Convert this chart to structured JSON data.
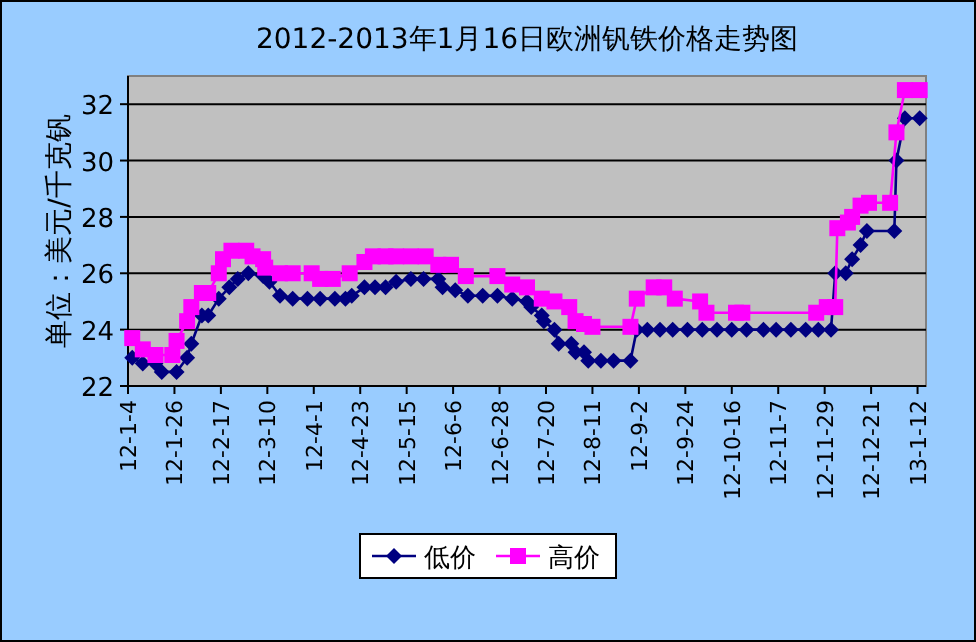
{
  "chart_data": {
    "type": "line",
    "title": "2012-2013年1月16日欧洲钒铁价格走势图",
    "ylabel": "单位：美元/千克钒",
    "xlim": [
      "2012-01-04",
      "2013-01-16"
    ],
    "xticks": [
      {
        "value": "2012-01-04",
        "label": "12-1-4"
      },
      {
        "value": "2012-01-26",
        "label": "12-1-26"
      },
      {
        "value": "2012-02-17",
        "label": "12-2-17"
      },
      {
        "value": "2012-03-10",
        "label": "12-3-10"
      },
      {
        "value": "2012-04-01",
        "label": "12-4-1"
      },
      {
        "value": "2012-04-23",
        "label": "12-4-23"
      },
      {
        "value": "2012-05-15",
        "label": "12-5-15"
      },
      {
        "value": "2012-06-06",
        "label": "12-6-6"
      },
      {
        "value": "2012-06-28",
        "label": "12-6-28"
      },
      {
        "value": "2012-07-20",
        "label": "12-7-20"
      },
      {
        "value": "2012-08-11",
        "label": "12-8-11"
      },
      {
        "value": "2012-09-02",
        "label": "12-9-2"
      },
      {
        "value": "2012-09-24",
        "label": "12-9-24"
      },
      {
        "value": "2012-10-16",
        "label": "12-10-16"
      },
      {
        "value": "2012-11-07",
        "label": "12-11-7"
      },
      {
        "value": "2012-11-29",
        "label": "12-11-29"
      },
      {
        "value": "2012-12-21",
        "label": "12-12-21"
      },
      {
        "value": "2013-01-12",
        "label": "13-1-12"
      }
    ],
    "ylim": [
      22,
      33
    ],
    "yticks": [
      22,
      24,
      26,
      28,
      30,
      32
    ],
    "grid": "y",
    "legend": "bottom",
    "series": [
      {
        "name": "低价",
        "color": "#000080",
        "marker": "diamond",
        "x": [
          "2012-01-06",
          "2012-01-11",
          "2012-01-17",
          "2012-01-20",
          "2012-01-27",
          "2012-02-01",
          "2012-02-03",
          "2012-02-08",
          "2012-02-11",
          "2012-02-16",
          "2012-02-21",
          "2012-02-25",
          "2012-03-01",
          "2012-03-08",
          "2012-03-11",
          "2012-03-16",
          "2012-03-22",
          "2012-03-29",
          "2012-04-04",
          "2012-04-11",
          "2012-04-16",
          "2012-04-19",
          "2012-04-25",
          "2012-04-30",
          "2012-05-05",
          "2012-05-10",
          "2012-05-17",
          "2012-05-23",
          "2012-05-30",
          "2012-06-01",
          "2012-06-07",
          "2012-06-13",
          "2012-06-20",
          "2012-06-27",
          "2012-07-04",
          "2012-07-11",
          "2012-07-13",
          "2012-07-18",
          "2012-07-19",
          "2012-07-24",
          "2012-07-26",
          "2012-08-01",
          "2012-08-03",
          "2012-08-07",
          "2012-08-09",
          "2012-08-15",
          "2012-08-21",
          "2012-08-29",
          "2012-09-01",
          "2012-09-06",
          "2012-09-12",
          "2012-09-18",
          "2012-09-25",
          "2012-10-02",
          "2012-10-09",
          "2012-10-16",
          "2012-10-23",
          "2012-10-31",
          "2012-11-06",
          "2012-11-13",
          "2012-11-20",
          "2012-11-26",
          "2012-12-02",
          "2012-12-04",
          "2012-12-09",
          "2012-12-12",
          "2012-12-16",
          "2012-12-19",
          "2013-01-01",
          "2013-01-02",
          "2013-01-06",
          "2013-01-13"
        ],
        "values": [
          23.0,
          22.8,
          22.8,
          22.5,
          22.5,
          23.0,
          23.5,
          24.5,
          24.5,
          25.1,
          25.5,
          25.8,
          26.0,
          25.9,
          25.7,
          25.2,
          25.1,
          25.1,
          25.1,
          25.1,
          25.1,
          25.2,
          25.5,
          25.5,
          25.5,
          25.7,
          25.8,
          25.8,
          25.8,
          25.5,
          25.4,
          25.2,
          25.2,
          25.2,
          25.1,
          25.0,
          24.8,
          24.5,
          24.3,
          24.0,
          23.5,
          23.5,
          23.2,
          23.2,
          22.9,
          22.9,
          22.9,
          22.9,
          24.0,
          24.0,
          24.0,
          24.0,
          24.0,
          24.0,
          24.0,
          24.0,
          24.0,
          24.0,
          24.0,
          24.0,
          24.0,
          24.0,
          24.0,
          26.0,
          26.0,
          26.5,
          27.0,
          27.5,
          27.5,
          30.0,
          31.5,
          31.5
        ]
      },
      {
        "name": "高价",
        "color": "#ff00ff",
        "marker": "square",
        "x": [
          "2012-01-06",
          "2012-01-11",
          "2012-01-17",
          "2012-01-25",
          "2012-01-27",
          "2012-02-01",
          "2012-02-03",
          "2012-02-08",
          "2012-02-11",
          "2012-02-16",
          "2012-02-18",
          "2012-02-22",
          "2012-02-29",
          "2012-03-03",
          "2012-03-08",
          "2012-03-09",
          "2012-03-16",
          "2012-03-22",
          "2012-03-31",
          "2012-04-04",
          "2012-04-10",
          "2012-04-18",
          "2012-04-25",
          "2012-04-29",
          "2012-05-05",
          "2012-05-10",
          "2012-05-17",
          "2012-05-24",
          "2012-05-30",
          "2012-06-05",
          "2012-06-12",
          "2012-06-27",
          "2012-07-04",
          "2012-07-11",
          "2012-07-18",
          "2012-07-24",
          "2012-07-31",
          "2012-08-03",
          "2012-08-07",
          "2012-08-11",
          "2012-08-29",
          "2012-09-01",
          "2012-09-09",
          "2012-09-14",
          "2012-09-19",
          "2012-10-01",
          "2012-10-04",
          "2012-10-18",
          "2012-10-21",
          "2012-11-25",
          "2012-11-30",
          "2012-12-04",
          "2012-12-05",
          "2012-12-10",
          "2012-12-12",
          "2012-12-16",
          "2012-12-20",
          "2012-12-30",
          "2013-01-02",
          "2013-01-06",
          "2013-01-13"
        ],
        "values": [
          23.7,
          23.3,
          23.1,
          23.1,
          23.6,
          24.3,
          24.8,
          25.3,
          25.3,
          26.0,
          26.5,
          26.8,
          26.8,
          26.6,
          26.5,
          26.2,
          26.0,
          26.0,
          26.0,
          25.8,
          25.8,
          26.0,
          26.4,
          26.6,
          26.6,
          26.6,
          26.6,
          26.6,
          26.3,
          26.3,
          25.9,
          25.9,
          25.6,
          25.5,
          25.1,
          25.0,
          24.8,
          24.3,
          24.2,
          24.1,
          24.1,
          25.1,
          25.5,
          25.5,
          25.1,
          25.0,
          24.6,
          24.6,
          24.6,
          24.6,
          24.8,
          24.8,
          27.6,
          27.8,
          28.0,
          28.4,
          28.5,
          28.5,
          31.0,
          32.5,
          32.5
        ]
      }
    ]
  }
}
